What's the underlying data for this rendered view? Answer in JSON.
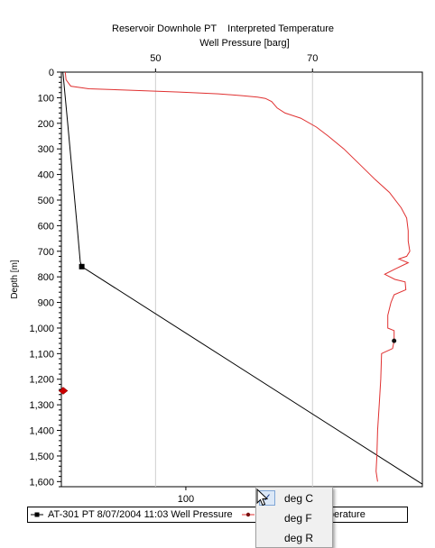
{
  "chart_data": {
    "type": "line",
    "title": "Reservoir Downhole PT    Interpreted Temperature",
    "top_axis": {
      "label": "Well Pressure [barg]",
      "range": [
        38,
        84
      ],
      "ticks": [
        50,
        70
      ],
      "tick_labels": [
        "50",
        "70"
      ],
      "grid": true
    },
    "bottom_axis": {
      "label": "",
      "range": [
        80,
        138
      ],
      "ticks": [
        100
      ],
      "tick_labels": [
        "100"
      ],
      "grid": false
    },
    "y_axis": {
      "label": "Depth [m]",
      "range": [
        0,
        1620
      ],
      "inverted": true,
      "ticks": [
        0,
        100,
        200,
        300,
        400,
        500,
        600,
        700,
        800,
        900,
        1000,
        1100,
        1200,
        1300,
        1400,
        1500,
        1600
      ],
      "tick_labels": [
        "0",
        "100",
        "200",
        "300",
        "400",
        "500",
        "600",
        "700",
        "800",
        "900",
        "1,000",
        "1,100",
        "1,200",
        "1,300",
        "1,400",
        "1,500",
        "1,600"
      ],
      "grid": false
    },
    "series": [
      {
        "name": "AT-301 PT 8/07/2004 11:03 Well Pressure",
        "axis": "top",
        "color": "#000000",
        "marker": "square",
        "points": [
          [
            38.2,
            0
          ],
          [
            38.8,
            200
          ],
          [
            39.4,
            400
          ],
          [
            40.0,
            600
          ],
          [
            40.4,
            740
          ],
          [
            40.6,
            760
          ],
          [
            84.0,
            1610
          ]
        ],
        "marked_points": [
          [
            40.6,
            760
          ]
        ]
      },
      {
        "name": "Interpreted Temperature",
        "axis": "top",
        "color": "#e03030",
        "marker": "circle",
        "points": [
          [
            38.5,
            0
          ],
          [
            38.6,
            30
          ],
          [
            39.2,
            55
          ],
          [
            41.5,
            65
          ],
          [
            46.0,
            70
          ],
          [
            53.0,
            78
          ],
          [
            58.0,
            85
          ],
          [
            61.0,
            92
          ],
          [
            63.0,
            98
          ],
          [
            64.0,
            103
          ],
          [
            64.8,
            115
          ],
          [
            65.5,
            140
          ],
          [
            66.5,
            160
          ],
          [
            68.5,
            180
          ],
          [
            70.5,
            215
          ],
          [
            72.0,
            250
          ],
          [
            74.0,
            300
          ],
          [
            76.0,
            360
          ],
          [
            78.0,
            420
          ],
          [
            79.8,
            470
          ],
          [
            81.3,
            530
          ],
          [
            82.0,
            570
          ],
          [
            82.2,
            620
          ],
          [
            82.2,
            660
          ],
          [
            82.4,
            700
          ],
          [
            82.0,
            720
          ],
          [
            81.0,
            730
          ],
          [
            82.2,
            745
          ],
          [
            80.5,
            770
          ],
          [
            79.2,
            790
          ],
          [
            80.5,
            810
          ],
          [
            81.8,
            820
          ],
          [
            81.9,
            850
          ],
          [
            80.4,
            870
          ],
          [
            80.0,
            900
          ],
          [
            79.6,
            950
          ],
          [
            79.6,
            1000
          ],
          [
            80.4,
            1010
          ],
          [
            80.4,
            1050
          ],
          [
            80.2,
            1080
          ],
          [
            78.8,
            1100
          ],
          [
            78.7,
            1200
          ],
          [
            78.5,
            1300
          ],
          [
            78.3,
            1400
          ],
          [
            78.2,
            1500
          ],
          [
            78.1,
            1560
          ],
          [
            78.3,
            1600
          ]
        ],
        "marked_points": [
          [
            80.4,
            1050
          ]
        ]
      }
    ],
    "annotations": [
      {
        "type": "marker",
        "shape": "diamond",
        "color": "#cc0000",
        "axis": "top",
        "x": 38.0,
        "y": 1245
      }
    ],
    "legend_position": "bottom"
  },
  "context_menu": {
    "items": [
      {
        "label": "deg C",
        "checked": true
      },
      {
        "label": "deg F",
        "checked": false
      },
      {
        "label": "deg R",
        "checked": false
      }
    ]
  }
}
